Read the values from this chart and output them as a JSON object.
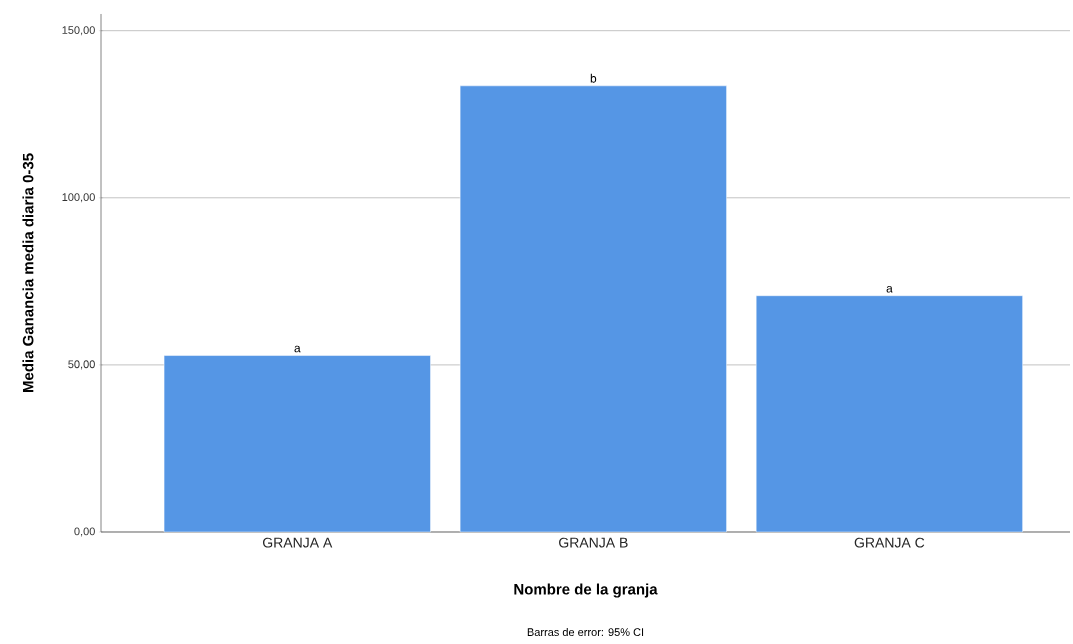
{
  "chart_data": {
    "type": "bar",
    "xlabel": "Nombre de la granja",
    "ylabel": "Media Ganancia media diaria 0-35",
    "categories": [
      "GRANJA A",
      "GRANJA B",
      "GRANJA C"
    ],
    "values": [
      52.8,
      133.5,
      70.7
    ],
    "color": "#5596e5",
    "ylim": [
      0,
      155
    ],
    "yticks": [
      {
        "value": 0,
        "label": "0,00"
      },
      {
        "value": 50,
        "label": "50,00"
      },
      {
        "value": 100,
        "label": "100,00"
      },
      {
        "value": 150,
        "label": "150,00"
      }
    ],
    "grid": "y",
    "annotations": [
      {
        "text": "a",
        "x": "GRANJA A",
        "y": 52.8
      },
      {
        "text": "b",
        "x": "GRANJA B",
        "y": 133.5
      },
      {
        "text": "a",
        "x": "GRANJA C",
        "y": 70.7
      },
      "Barras de error: 95% CI"
    ]
  }
}
